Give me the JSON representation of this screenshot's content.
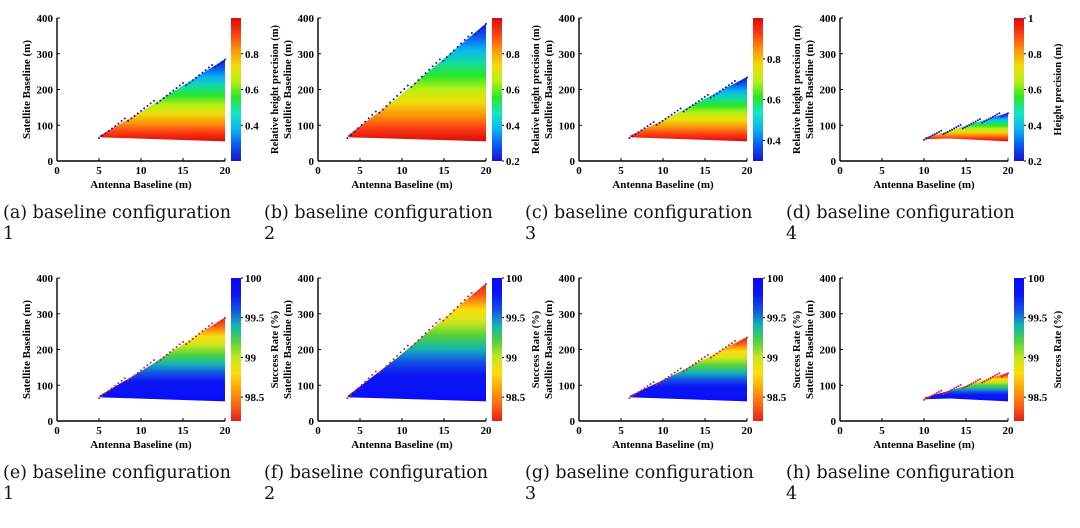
{
  "colors": {
    "jet_scale": [
      "#1414d2",
      "#0a5af0",
      "#0ab4f0",
      "#14e6c8",
      "#28e628",
      "#b4f014",
      "#f0dc0a",
      "#fa960a",
      "#ff3c14",
      "#dc0a0a"
    ],
    "rdyl_scale": [
      "#e61e1e",
      "#fa6414",
      "#ffa00a",
      "#ffdc0a",
      "#c8e61e",
      "#50d23c",
      "#14b4b4",
      "#1450e6",
      "#0a14f5",
      "#0a0aff"
    ]
  },
  "chart_data": [
    {
      "id": "a",
      "type": "scatter-density",
      "xlabel": "Antenna Baseline (m)",
      "ylabel": "Satellite Baseline (m)",
      "xlim": [
        0,
        20
      ],
      "ylim": [
        0,
        400
      ],
      "xticks": [
        "0",
        "5",
        "10",
        "15",
        "20"
      ],
      "yticks": [
        "0",
        "100",
        "200",
        "300",
        "400"
      ],
      "region": {
        "x_start": 5,
        "x_end": 20,
        "apex_y": 70,
        "top_y_at_end": 285,
        "bottom_y_at_end": 55
      },
      "colormap": "jet_height",
      "colorbar": {
        "label": "Relative height precision (m)",
        "min": 0.2,
        "max": 1.0,
        "ticks": [
          "0.4",
          "0.6",
          "0.8"
        ]
      },
      "caption": "(a) baseline configuration 1",
      "caption_line1": "(a) baseline configuration",
      "caption_line2": "1"
    },
    {
      "id": "b",
      "type": "scatter-density",
      "xlabel": "Antenna Baseline (m)",
      "ylabel": "Satellite Baseline (m)",
      "xlim": [
        0,
        20
      ],
      "ylim": [
        0,
        400
      ],
      "xticks": [
        "0",
        "5",
        "10",
        "15",
        "20"
      ],
      "yticks": [
        "0",
        "100",
        "200",
        "300",
        "400"
      ],
      "region": {
        "x_start": 3.5,
        "x_end": 20,
        "apex_y": 70,
        "top_y_at_end": 385,
        "bottom_y_at_end": 55
      },
      "colormap": "jet_height",
      "colorbar": {
        "label": "Relative height precision (m)",
        "min": 0.2,
        "max": 1.0,
        "ticks": [
          "0.2",
          "0.4",
          "0.6",
          "0.8"
        ]
      },
      "caption": "(b) baseline configuration 2",
      "caption_line1": "(b) baseline configuration",
      "caption_line2": "2"
    },
    {
      "id": "c",
      "type": "scatter-density",
      "xlabel": "Antenna Baseline (m)",
      "ylabel": "Satellite Baseline (m)",
      "xlim": [
        0,
        20
      ],
      "ylim": [
        0,
        400
      ],
      "xticks": [
        "0",
        "5",
        "10",
        "15",
        "20"
      ],
      "yticks": [
        "0",
        "100",
        "200",
        "300",
        "400"
      ],
      "region": {
        "x_start": 6,
        "x_end": 20,
        "apex_y": 70,
        "top_y_at_end": 235,
        "bottom_y_at_end": 55
      },
      "colormap": "jet_height",
      "colorbar": {
        "label": "Relative height precision (m)",
        "min": 0.3,
        "max": 1.0,
        "ticks": [
          "0.4",
          "0.6",
          "0.8"
        ]
      },
      "caption": "(c) baseline configuration 3",
      "caption_line1": "(c) baseline configuration",
      "caption_line2": "3"
    },
    {
      "id": "d",
      "type": "scatter-density",
      "xlabel": "Antenna Baseline (m)",
      "ylabel": "Satellite Baseline (m)",
      "xlim": [
        0,
        20
      ],
      "ylim": [
        0,
        400
      ],
      "xticks": [
        "0",
        "5",
        "10",
        "15",
        "20"
      ],
      "yticks": [
        "0",
        "100",
        "200",
        "300",
        "400"
      ],
      "region": {
        "x_start": 10,
        "x_end": 20,
        "apex_y": 65,
        "top_y_at_end": 135,
        "bottom_y_at_end": 55
      },
      "colormap": "jet_height",
      "colorbar": {
        "label": "Height precision (m)",
        "min": 0.2,
        "max": 1.0,
        "ticks": [
          "0.2",
          "0.4",
          "0.6",
          "0.8",
          "1"
        ]
      },
      "caption": "(d) baseline configuration 4",
      "caption_line1": "(d) baseline configuration",
      "caption_line2": "4"
    },
    {
      "id": "e",
      "type": "scatter-density",
      "xlabel": "Antenna Baseline (m)",
      "ylabel": "Satellite Baseline (m)",
      "xlim": [
        0,
        20
      ],
      "ylim": [
        0,
        400
      ],
      "xticks": [
        "0",
        "5",
        "10",
        "15",
        "20"
      ],
      "yticks": [
        "0",
        "100",
        "200",
        "300",
        "400"
      ],
      "region": {
        "x_start": 5,
        "x_end": 20,
        "apex_y": 70,
        "top_y_at_end": 290,
        "bottom_y_at_end": 55
      },
      "colormap": "success_rate",
      "colorbar": {
        "label": "Success Rate (%)",
        "min": 98.2,
        "max": 100,
        "ticks": [
          "98.5",
          "99",
          "99.5",
          "100"
        ]
      },
      "caption": "(e) baseline configuration 1",
      "caption_line1": "(e) baseline configuration",
      "caption_line2": "1"
    },
    {
      "id": "f",
      "type": "scatter-density",
      "xlabel": "Antenna Baseline (m)",
      "ylabel": "Satellite Baseline (m)",
      "xlim": [
        0,
        20
      ],
      "ylim": [
        0,
        400
      ],
      "xticks": [
        "0",
        "5",
        "10",
        "15",
        "20"
      ],
      "yticks": [
        "0",
        "100",
        "200",
        "300",
        "400"
      ],
      "region": {
        "x_start": 3.5,
        "x_end": 20,
        "apex_y": 70,
        "top_y_at_end": 385,
        "bottom_y_at_end": 55
      },
      "colormap": "success_rate",
      "colorbar": {
        "label": "Success Rate (%)",
        "min": 98.2,
        "max": 100,
        "ticks": [
          "98.5",
          "99",
          "99.5",
          "100"
        ]
      },
      "caption": "(f) baseline configuration 2",
      "caption_line1": "(f) baseline configuration",
      "caption_line2": "2"
    },
    {
      "id": "g",
      "type": "scatter-density",
      "xlabel": "Antenna Baseline (m)",
      "ylabel": "Satellite Baseline (m)",
      "xlim": [
        0,
        20
      ],
      "ylim": [
        0,
        400
      ],
      "xticks": [
        "0",
        "5",
        "10",
        "15",
        "20"
      ],
      "yticks": [
        "0",
        "100",
        "200",
        "300",
        "400"
      ],
      "region": {
        "x_start": 6,
        "x_end": 20,
        "apex_y": 70,
        "top_y_at_end": 235,
        "bottom_y_at_end": 55
      },
      "colormap": "success_rate",
      "colorbar": {
        "label": "Success Rate (%)",
        "min": 98.2,
        "max": 100,
        "ticks": [
          "98.5",
          "99",
          "99.5",
          "100"
        ]
      },
      "caption": "(g) baseline configuration 3",
      "caption_line1": "(g) baseline configuration",
      "caption_line2": "3"
    },
    {
      "id": "h",
      "type": "scatter-density",
      "xlabel": "Antenna Baseline (m)",
      "ylabel": "Satellite Baseline (m)",
      "xlim": [
        0,
        20
      ],
      "ylim": [
        0,
        400
      ],
      "xticks": [
        "0",
        "5",
        "10",
        "15",
        "20"
      ],
      "yticks": [
        "0",
        "100",
        "200",
        "300",
        "400"
      ],
      "region": {
        "x_start": 10,
        "x_end": 20,
        "apex_y": 65,
        "top_y_at_end": 135,
        "bottom_y_at_end": 55
      },
      "colormap": "success_rate",
      "colorbar": {
        "label": "Success Rate (%)",
        "min": 98.2,
        "max": 100,
        "ticks": [
          "98.5",
          "99",
          "99.5",
          "100"
        ]
      },
      "caption": "(h) baseline configuration 4",
      "caption_line1": "(h) baseline configuration",
      "caption_line2": "4"
    }
  ]
}
